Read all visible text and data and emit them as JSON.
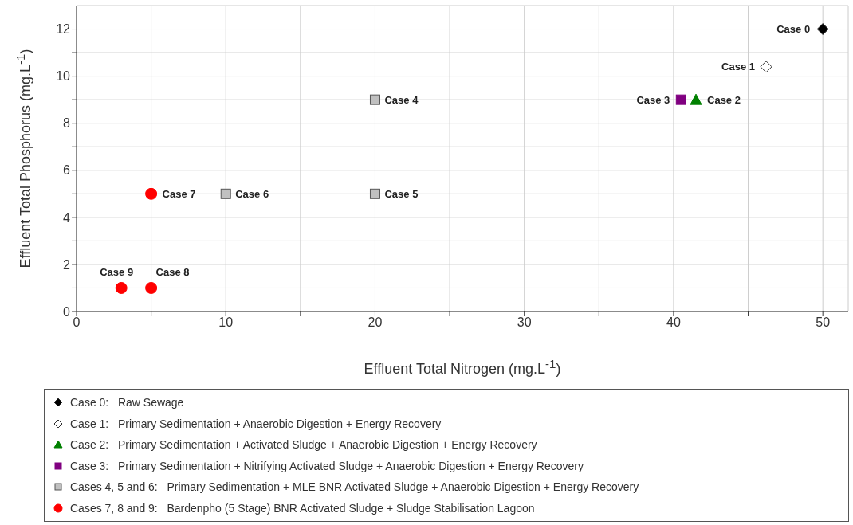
{
  "chart_data": {
    "type": "scatter",
    "xlabel": "Effluent Total Nitrogen (mg.L$^{-1}$)",
    "ylabel": "Effluent Total Phosphorus (mg.L$^{-1}$)",
    "xlim": [
      0,
      51.7
    ],
    "ylim": [
      0,
      13
    ],
    "xticks": [
      0,
      {
        "value": 5,
        "label": null
      },
      10,
      {
        "value": 15,
        "label": null
      },
      20,
      {
        "value": 25,
        "label": null
      },
      30,
      {
        "value": 35,
        "label": null
      },
      40,
      {
        "value": 45,
        "label": null
      },
      50
    ],
    "yticks": [
      0,
      {
        "value": 1,
        "label": null
      },
      2,
      {
        "value": 3,
        "label": null
      },
      4,
      {
        "value": 5,
        "label": null
      },
      6,
      {
        "value": 7,
        "label": null
      },
      8,
      {
        "value": 9,
        "label": null
      },
      10,
      {
        "value": 11,
        "label": null
      },
      12
    ],
    "grid": true,
    "legend": "bottom",
    "series": [
      {
        "name": "Case 0:   Raw Sewage",
        "color": "#000000",
        "marker": "diamond",
        "x": [
          50
        ],
        "values": [
          12
        ]
      },
      {
        "name": "Case 1:   Primary Sedimentation + Anaerobic Digestion + Energy Recovery",
        "color": "#ffffff",
        "marker": "diamond",
        "x": [
          46.2
        ],
        "values": [
          10.4
        ]
      },
      {
        "name": "Case 2:   Primary Sedimentation + Activated Sludge + Anaerobic Digestion + Energy Recovery",
        "color": "#008000",
        "marker": "triangle",
        "x": [
          41.5
        ],
        "values": [
          9
        ]
      },
      {
        "name": "Case 3:   Primary Sedimentation + Nitrifying Activated Sludge + Anaerobic Digestion + Energy Recovery",
        "color": "#800080",
        "marker": "square",
        "x": [
          40.5
        ],
        "values": [
          9
        ]
      },
      {
        "name": "Cases 4, 5 and 6:   Primary Sedimentation + MLE BNR Activated Sludge + Anaerobic Digestion + Energy Recovery",
        "color": "#c0c0c0",
        "marker": "square",
        "x": [
          20,
          20,
          10
        ],
        "values": [
          9,
          5,
          5
        ]
      },
      {
        "name": "Cases 7, 8 and 9:   Bardenpho (5 Stage) BNR Activated Sludge + Sludge Stabilisation Lagoon",
        "color": "#ff0000",
        "marker": "circle",
        "x": [
          5,
          5,
          3
        ],
        "values": [
          5,
          1,
          1
        ]
      }
    ],
    "annotations": [
      {
        "text": "Case 0",
        "x": 50,
        "y": 12
      },
      {
        "text": "Case 1",
        "x": 46.2,
        "y": 10.4
      },
      {
        "text": "Case 2",
        "x": 41.5,
        "y": 9
      },
      {
        "text": "Case 3",
        "x": 40.5,
        "y": 9
      },
      {
        "text": "Case 4",
        "x": 20,
        "y": 9
      },
      {
        "text": "Case 5",
        "x": 20,
        "y": 5
      },
      {
        "text": "Case 6",
        "x": 10,
        "y": 5
      },
      {
        "text": "Case 7",
        "x": 5,
        "y": 5
      },
      {
        "text": "Case 8",
        "x": 5,
        "y": 1
      },
      {
        "text": "Case 9",
        "x": 3,
        "y": 1
      }
    ]
  }
}
